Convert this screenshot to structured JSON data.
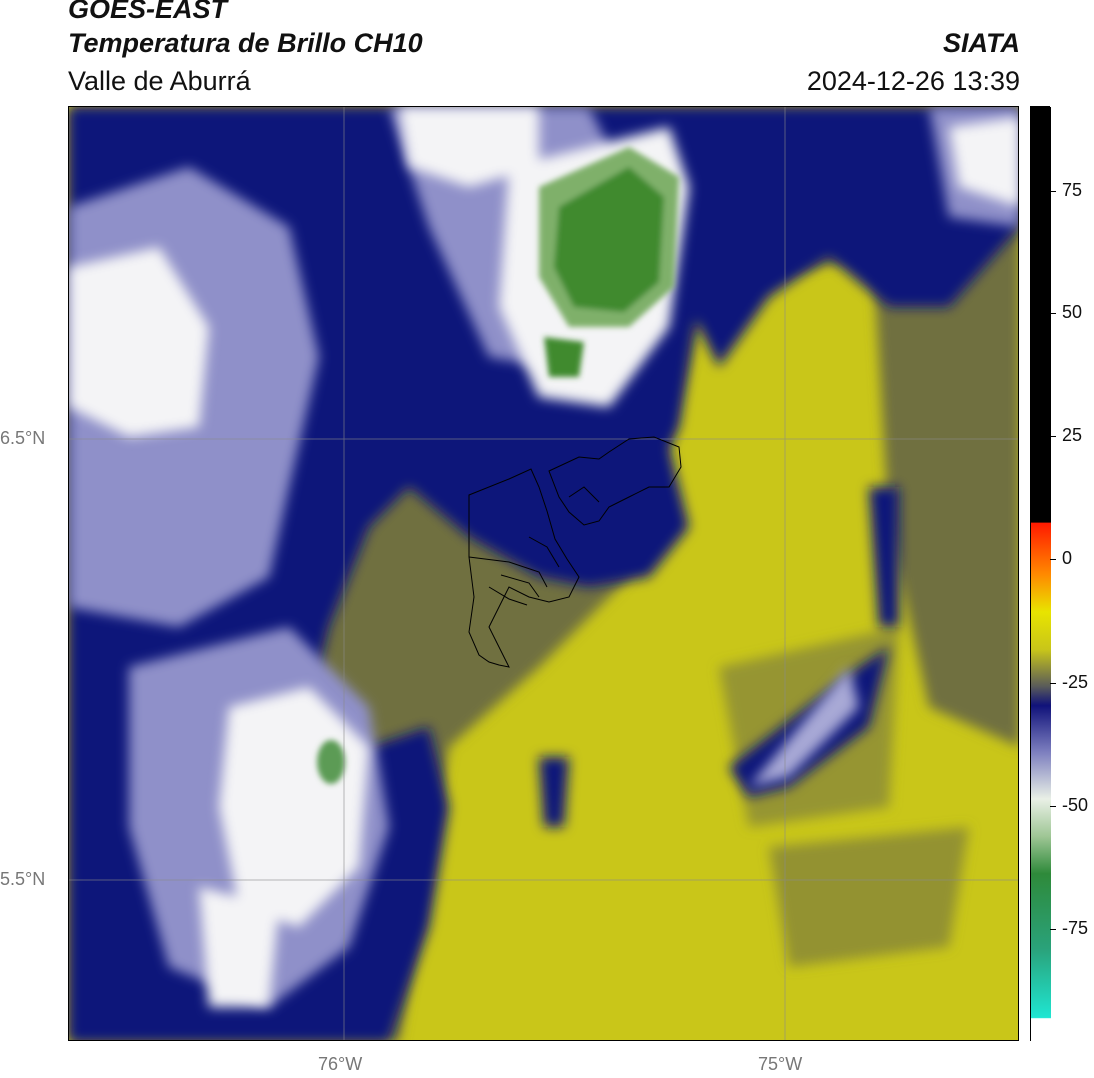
{
  "header": {
    "satellite": "GOES-EAST",
    "product": "Temperatura de Brillo CH10",
    "region": "Valle de Aburrá",
    "agency": "SIATA",
    "datetime": "2024-12-26 13:39"
  },
  "map": {
    "lat_labels": [
      "6.5°N",
      "5.5°N"
    ],
    "lon_labels": [
      "76°W",
      "75°W"
    ],
    "colors": {
      "yellow": "#c9c619",
      "olive": "#6f6f3f",
      "navy": "#10127a",
      "lavender": "#8f90c9",
      "white": "#f4f4f6",
      "green": "#3f8a2f"
    }
  },
  "colorbar": {
    "ticks": [
      "75",
      "50",
      "25",
      "0",
      "-25",
      "-50",
      "-75"
    ],
    "units_hint": "brightness temperature",
    "colors": [
      "#ffffff",
      "#1fe6d2",
      "#2e8a3a",
      "#e9f0e6",
      "#7d7fbf",
      "#10127a",
      "#c9c619",
      "#e8e400",
      "#ff8a00",
      "#ff1a00",
      "#000000"
    ]
  }
}
